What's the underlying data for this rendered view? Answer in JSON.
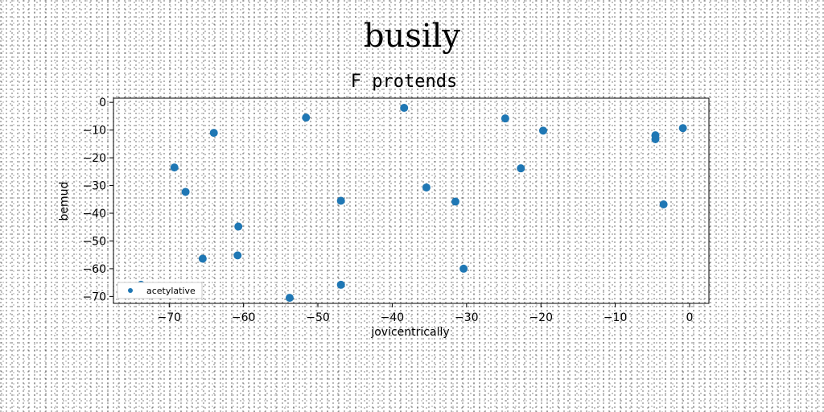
{
  "page_title": "busily",
  "chart_data": {
    "type": "scatter",
    "title": "F protends",
    "xlabel": "jovicentrically",
    "ylabel": "bemud",
    "xlim": [
      -77.5,
      2.6
    ],
    "ylim": [
      -72.5,
      1.5
    ],
    "xticks": [
      -70,
      -60,
      -50,
      -40,
      -30,
      -20,
      -10,
      0
    ],
    "yticks": [
      0,
      -10,
      -20,
      -30,
      -40,
      -50,
      -60,
      -70
    ],
    "xtick_labels": [
      "−70",
      "−60",
      "−50",
      "−40",
      "−30",
      "−20",
      "−10",
      "0"
    ],
    "ytick_labels": [
      "0",
      "−10",
      "−20",
      "−30",
      "−40",
      "−50",
      "−60",
      "−70"
    ],
    "grid": false,
    "legend_position": "lower-left",
    "series": [
      {
        "name": "acetylative",
        "color": "#1f77b4",
        "points": [
          {
            "x": -73.8,
            "y": -65.8
          },
          {
            "x": -69.3,
            "y": -23.5
          },
          {
            "x": -67.8,
            "y": -32.3
          },
          {
            "x": -64.0,
            "y": -11.0
          },
          {
            "x": -65.5,
            "y": -56.4
          },
          {
            "x": -60.7,
            "y": -44.8
          },
          {
            "x": -60.8,
            "y": -55.2
          },
          {
            "x": -53.8,
            "y": -70.5
          },
          {
            "x": -51.6,
            "y": -5.5
          },
          {
            "x": -46.9,
            "y": -35.5
          },
          {
            "x": -46.9,
            "y": -65.8
          },
          {
            "x": -38.4,
            "y": -2.0
          },
          {
            "x": -35.4,
            "y": -30.7
          },
          {
            "x": -31.5,
            "y": -35.8
          },
          {
            "x": -30.4,
            "y": -60.0
          },
          {
            "x": -24.8,
            "y": -5.8
          },
          {
            "x": -22.7,
            "y": -23.8
          },
          {
            "x": -19.7,
            "y": -10.2
          },
          {
            "x": -4.6,
            "y": -11.9
          },
          {
            "x": -4.6,
            "y": -13.3
          },
          {
            "x": -3.5,
            "y": -36.8
          },
          {
            "x": -0.9,
            "y": -9.3
          }
        ]
      }
    ]
  }
}
